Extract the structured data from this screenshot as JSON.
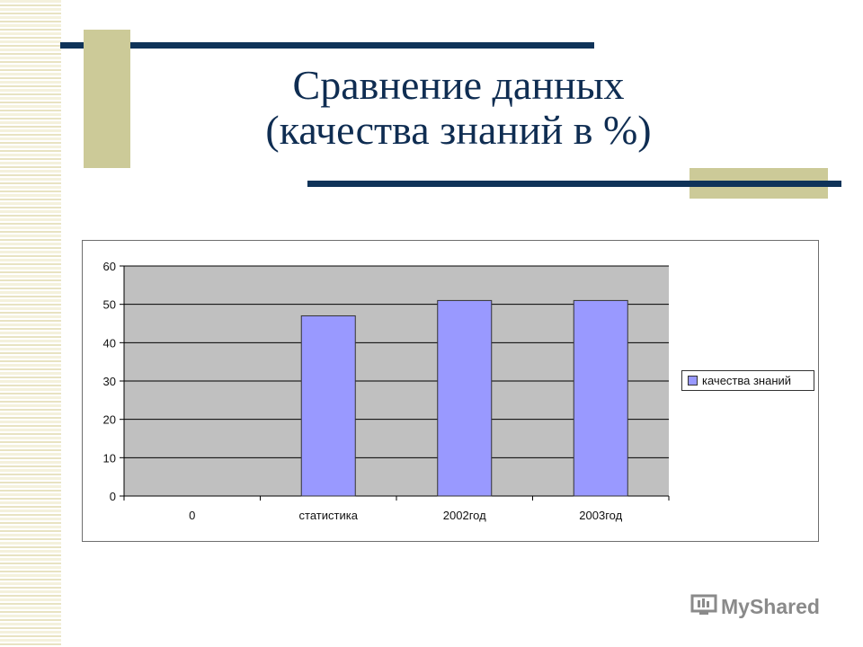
{
  "slide": {
    "title_line1": "Сравнение данных",
    "title_line2": "(качества знаний в %)",
    "watermark": "MyShared"
  },
  "colors": {
    "title": "#0f2d52",
    "accent_line": "#0f3359",
    "accent_block": "#ccca98",
    "plot_area": "#c0c0c0",
    "bar": "#9999ff"
  },
  "chart_data": {
    "type": "bar",
    "categories": [
      "0",
      "статистика",
      "2002год",
      "2003год"
    ],
    "series": [
      {
        "name": "качества знаний",
        "values": [
          0,
          47,
          51,
          51
        ]
      }
    ],
    "ylim": [
      0,
      60
    ],
    "yticks": [
      0,
      10,
      20,
      30,
      40,
      50,
      60
    ],
    "grid": true,
    "legend": "right",
    "title": "",
    "xlabel": "",
    "ylabel": ""
  }
}
